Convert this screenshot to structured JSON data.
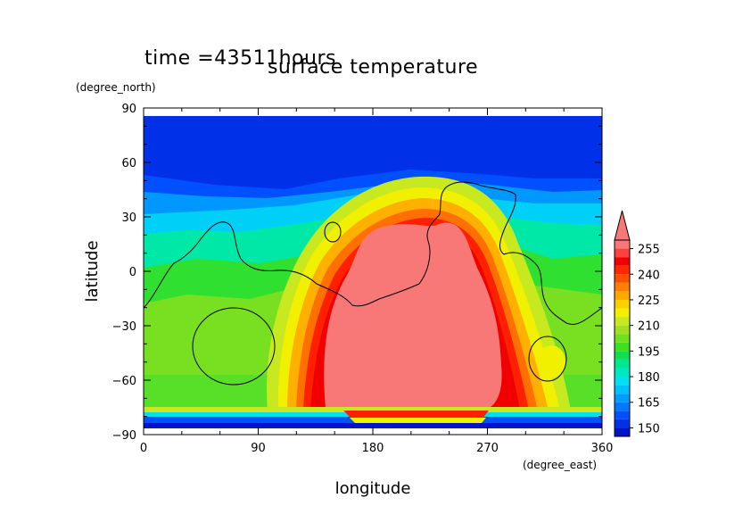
{
  "chart_data": {
    "type": "heatmap",
    "title": "surface temperature",
    "time_label": "time =43511hours",
    "xlabel": "longitude",
    "ylabel": "latitude",
    "x_unit": "(degree_east)",
    "y_unit": "(degree_north)",
    "xlim": [
      0,
      360
    ],
    "ylim": [
      -90,
      90
    ],
    "x_ticks": [
      "0",
      "90",
      "180",
      "270",
      "360"
    ],
    "y_ticks": [
      "90",
      "60",
      "30",
      "0",
      "−30",
      "−60",
      "−90"
    ],
    "colorbar": {
      "levels": [
        145,
        150,
        155,
        160,
        165,
        170,
        175,
        180,
        185,
        190,
        195,
        200,
        205,
        210,
        215,
        220,
        225,
        230,
        235,
        240,
        245,
        250,
        255,
        260
      ],
      "tick_labels": [
        "150",
        "165",
        "180",
        "195",
        "210",
        "225",
        "240",
        "255"
      ],
      "colors": [
        "#0015c8",
        "#0030e8",
        "#0050ff",
        "#0078ff",
        "#009cff",
        "#00c0ff",
        "#00e0f0",
        "#00e8c0",
        "#00e890",
        "#10e050",
        "#40e020",
        "#70e020",
        "#a0e020",
        "#c8e820",
        "#f0f000",
        "#ffd000",
        "#ffa800",
        "#ff8000",
        "#ff5000",
        "#ff2800",
        "#f00000",
        "#ff4040",
        "#f87878"
      ],
      "extend_max": true
    }
  }
}
